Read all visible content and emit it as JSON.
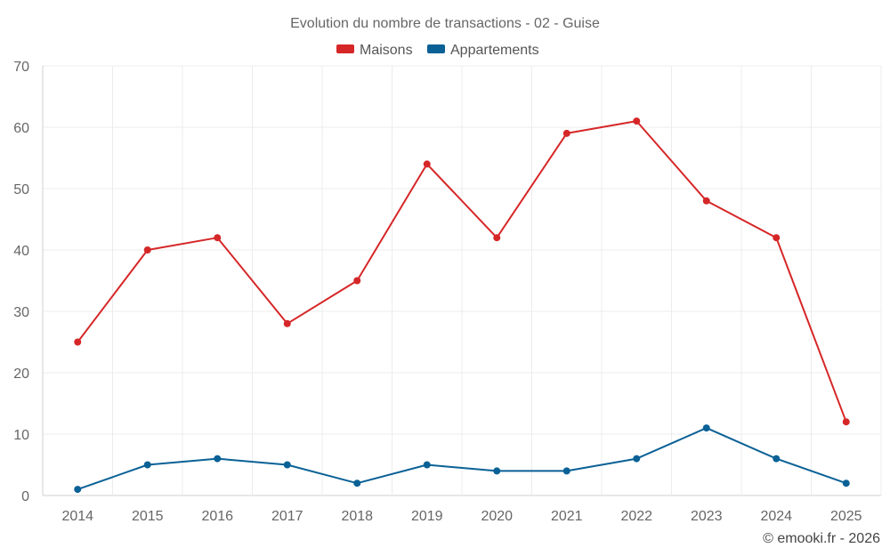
{
  "chart_data": {
    "type": "line",
    "title": "Evolution du nombre de transactions - 02 - Guise",
    "xlabel": "",
    "ylabel": "",
    "categories": [
      "2014",
      "2015",
      "2016",
      "2017",
      "2018",
      "2019",
      "2020",
      "2021",
      "2022",
      "2023",
      "2024",
      "2025"
    ],
    "series": [
      {
        "name": "Maisons",
        "color": "#d62728",
        "values": [
          25,
          40,
          42,
          28,
          35,
          54,
          42,
          59,
          61,
          48,
          42,
          12
        ]
      },
      {
        "name": "Appartements",
        "color": "#0a6196",
        "values": [
          1,
          5,
          6,
          5,
          2,
          5,
          4,
          4,
          6,
          11,
          6,
          2
        ]
      }
    ],
    "ylim": [
      0,
      70
    ],
    "yticks": [
      0,
      10,
      20,
      30,
      40,
      50,
      60,
      70
    ],
    "grid": true,
    "legend_position": "top-center"
  },
  "credit": "© emooki.fr - 2026"
}
